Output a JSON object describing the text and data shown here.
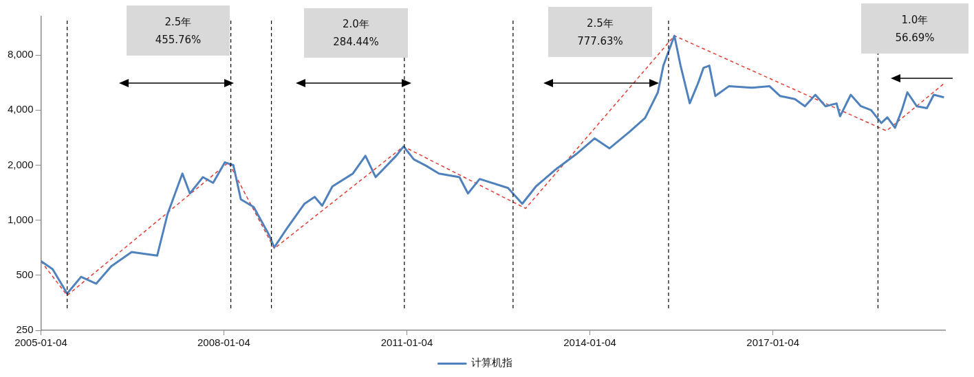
{
  "chart_data": {
    "type": "line",
    "x": [
      "2005-01-04",
      "2005-03-15",
      "2005-06-10",
      "2005-09-01",
      "2005-12-01",
      "2006-03-01",
      "2006-07-01",
      "2006-12-01",
      "2007-02-01",
      "2007-05-01",
      "2007-06-15",
      "2007-09-01",
      "2007-11-01",
      "2008-01-10",
      "2008-03-01",
      "2008-04-15",
      "2008-07-01",
      "2008-10-01",
      "2008-11-01",
      "2009-01-15",
      "2009-05-01",
      "2009-07-01",
      "2009-08-15",
      "2009-10-15",
      "2010-02-15",
      "2010-05-01",
      "2010-07-01",
      "2010-11-01",
      "2010-12-15",
      "2011-02-15",
      "2011-05-01",
      "2011-07-15",
      "2011-11-15",
      "2012-01-05",
      "2012-03-15",
      "2012-09-01",
      "2012-11-25",
      "2013-02-15",
      "2013-06-15",
      "2013-10-15",
      "2014-02-01",
      "2014-05-01",
      "2014-09-01",
      "2014-12-01",
      "2015-02-15",
      "2015-03-20",
      "2015-05-25",
      "2015-07-01",
      "2015-08-25",
      "2015-10-15",
      "2015-11-15",
      "2015-12-20",
      "2016-01-25",
      "2016-04-15",
      "2016-09-01",
      "2016-12-15",
      "2017-02-15",
      "2017-05-15",
      "2017-07-15",
      "2017-09-15",
      "2017-11-15",
      "2018-01-20",
      "2018-02-10",
      "2018-04-15",
      "2018-06-15",
      "2018-08-15",
      "2018-10-15",
      "2018-11-20",
      "2019-01-05",
      "2019-02-15",
      "2019-03-20",
      "2019-05-15",
      "2019-07-15",
      "2019-08-25",
      "2019-10-25"
    ],
    "series": [
      {
        "name": "计算机指",
        "color": "#4f81bd",
        "values": [
          597,
          540,
          397,
          490,
          450,
          560,
          670,
          640,
          1080,
          1800,
          1400,
          1720,
          1600,
          2070,
          2000,
          1300,
          1180,
          830,
          710,
          900,
          1230,
          1340,
          1200,
          1530,
          1800,
          2250,
          1720,
          2250,
          2530,
          2150,
          1980,
          1800,
          1720,
          1400,
          1680,
          1500,
          1230,
          1530,
          1900,
          2300,
          2800,
          2470,
          3060,
          3630,
          5000,
          7000,
          10200,
          7000,
          4360,
          5650,
          6800,
          7000,
          4780,
          5400,
          5300,
          5400,
          4780,
          4600,
          4200,
          4850,
          4200,
          4350,
          3700,
          4850,
          4200,
          4000,
          3400,
          3650,
          3200,
          4000,
          5000,
          4200,
          4100,
          4850,
          4700
        ]
      },
      {
        "type": "line",
        "color": "#e03c31",
        "line_style": "dashed",
        "x": [
          "2005-01-04",
          "2005-06-10",
          "2008-02-01",
          "2008-11-01",
          "2010-12-15",
          "2012-12-15",
          "2015-05-25",
          "2018-11-15",
          "2019-11-01"
        ],
        "values": [
          597,
          388,
          2070,
          700,
          2530,
          1160,
          10200,
          3080,
          5650
        ]
      }
    ],
    "xlim": [
      "2005-01-04",
      "2019-11-01"
    ],
    "xticks": [
      "2005-01-04",
      "2008-01-04",
      "2011-01-04",
      "2014-01-04",
      "2017-01-04"
    ],
    "ylim": [
      250,
      13000
    ],
    "yticks": [
      250,
      500,
      {
        "value": 1000,
        "label": "1,000"
      },
      {
        "value": 2000,
        "label": "2,000"
      },
      {
        "value": 4000,
        "label": "4,000"
      },
      {
        "value": 8000,
        "label": "8,000"
      }
    ],
    "log": "y",
    "grid": false,
    "legend": "bottom",
    "marker": "none",
    "line_style": "solid",
    "ref_lines": [
      {
        "axis": "x",
        "value": "2005-06-10",
        "color": "#000000",
        "line_style": "dashed"
      },
      {
        "axis": "x",
        "value": "2008-02-15",
        "color": "#000000",
        "line_style": "dashed"
      },
      {
        "axis": "x",
        "value": "2008-10-15",
        "color": "#000000",
        "line_style": "dashed"
      },
      {
        "axis": "x",
        "value": "2010-12-20",
        "color": "#000000",
        "line_style": "dashed"
      },
      {
        "axis": "x",
        "value": "2012-10-01",
        "color": "#000000",
        "line_style": "dashed"
      },
      {
        "axis": "x",
        "value": "2015-04-20",
        "color": "#000000",
        "line_style": "dashed"
      },
      {
        "axis": "x",
        "value": "2018-09-25",
        "color": "#000000",
        "line_style": "dashed"
      }
    ],
    "annotations": [
      "2.5年\n455.76%",
      "2.0年\n284.44%",
      "2.5年\n777.63%",
      "1.0年\n56.69%"
    ]
  }
}
